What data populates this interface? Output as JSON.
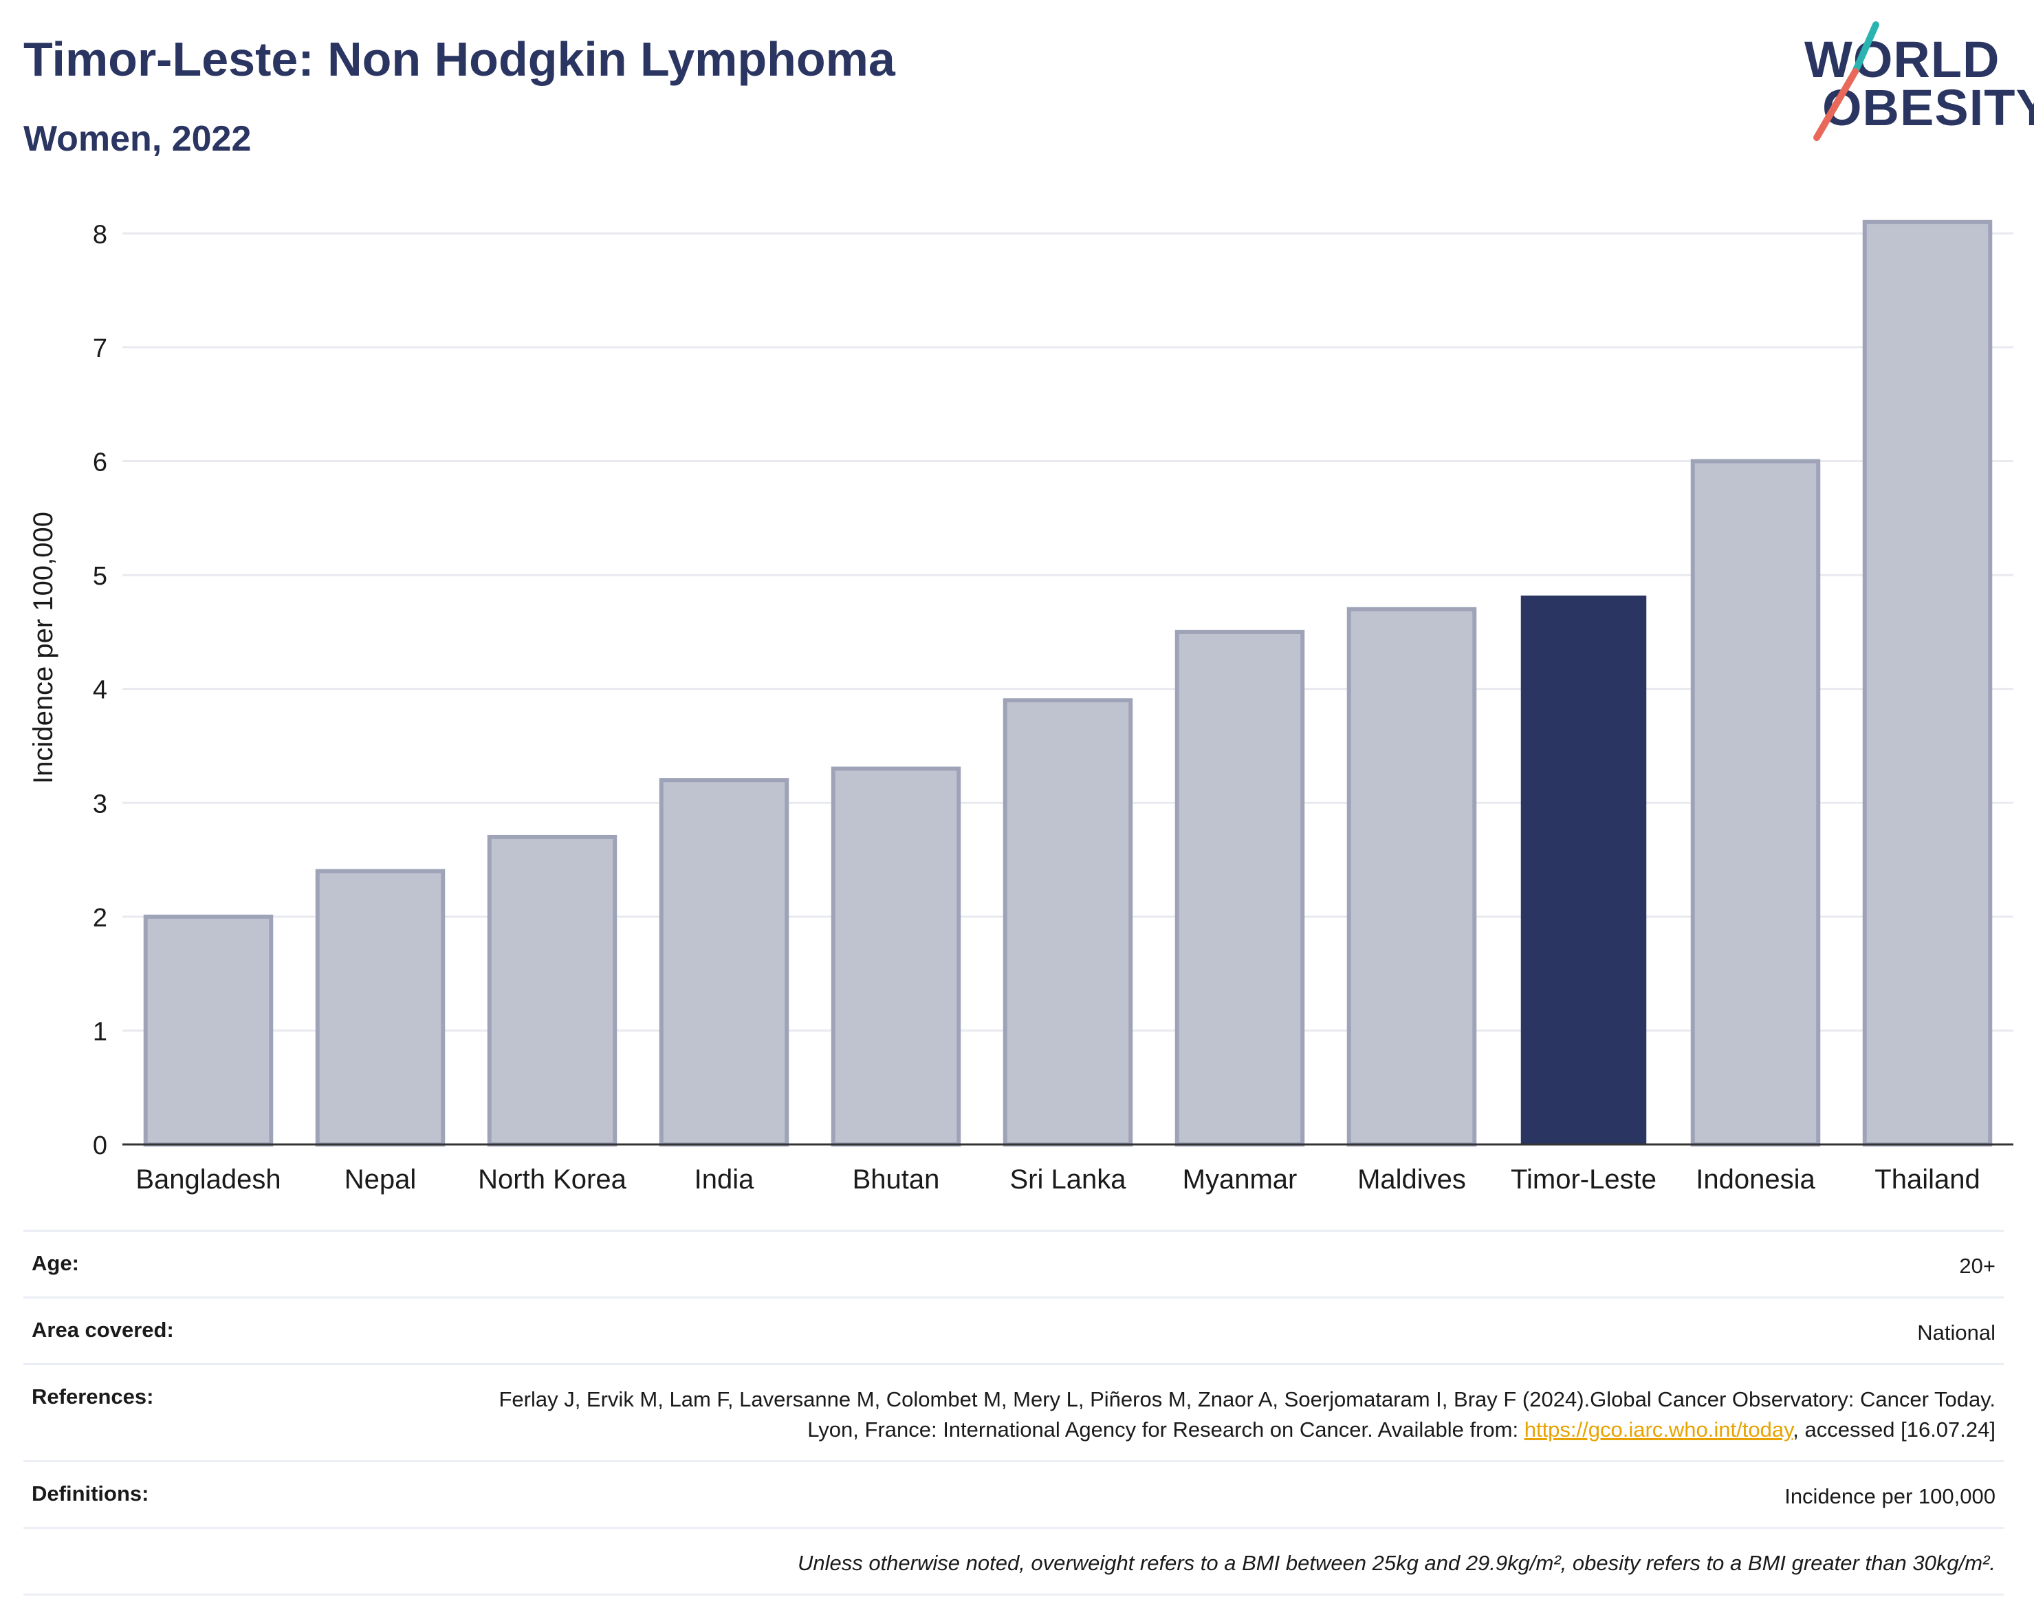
{
  "header": {
    "title": "Timor-Leste: Non Hodgkin Lymphoma",
    "subtitle": "Women, 2022"
  },
  "logo": {
    "line1": "WORLD",
    "line2": "OBESITY",
    "colors": {
      "text": "#2a3561",
      "slash_top": "#2ab3b1",
      "slash_bottom": "#e8685a"
    }
  },
  "chart_data": {
    "type": "bar",
    "categories": [
      "Bangladesh",
      "Nepal",
      "North Korea",
      "India",
      "Bhutan",
      "Sri Lanka",
      "Myanmar",
      "Maldives",
      "Timor-Leste",
      "Indonesia",
      "Thailand"
    ],
    "values": [
      2.0,
      2.4,
      2.7,
      3.2,
      3.3,
      3.9,
      4.5,
      4.7,
      4.82,
      6.0,
      8.1
    ],
    "highlight": "Timor-Leste",
    "ylabel": "Incidence per 100,000",
    "xlabel": "",
    "ylim": [
      0,
      8.6
    ],
    "yticks": [
      0,
      1,
      2,
      3,
      4,
      5,
      6,
      7,
      8
    ],
    "grid": true,
    "colors": {
      "bar": "#bfc3d0",
      "bar_border": "#9ea3b8",
      "highlight": "#2a3561",
      "grid": "#e8eaf0"
    }
  },
  "meta": [
    {
      "label": "Age:",
      "value": "20+"
    },
    {
      "label": "Area covered:",
      "value": "National"
    },
    {
      "label": "References:",
      "value_pre": "Ferlay J, Ervik M, Lam F, Laversanne M, Colombet M, Mery L, Piñeros M, Znaor A, Soerjomataram I, Bray F (2024).Global Cancer Observatory: Cancer Today. Lyon, France: International Agency for Research on Cancer. Available from: ",
      "link": "https://gco.iarc.who.int/today",
      "value_post": ", accessed [16.07.24]"
    },
    {
      "label": "Definitions:",
      "value": "Incidence per 100,000"
    },
    {
      "label": "",
      "value": "Unless otherwise noted, overweight refers to a BMI between 25kg and 29.9kg/m², obesity refers to a BMI greater than 30kg/m²."
    }
  ]
}
